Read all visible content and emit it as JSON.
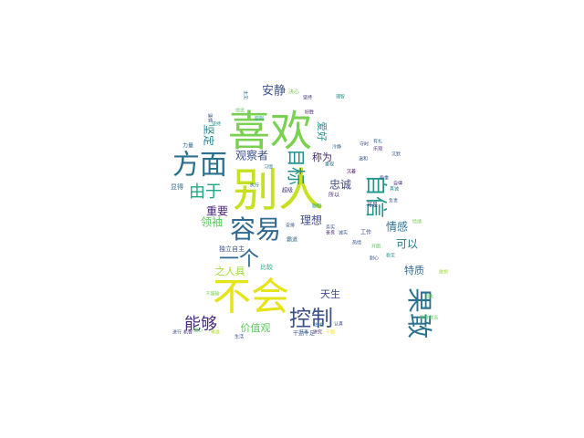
{
  "colors": {
    "background": "#ffffff",
    "palette": [
      "#440154",
      "#3b528b",
      "#21918c",
      "#5ec962",
      "#fde725"
    ]
  },
  "words": [
    {
      "text": "别人",
      "color": "#c7e020"
    },
    {
      "text": "喜欢",
      "color": "#7ad151"
    },
    {
      "text": "不会",
      "color": "#e5e419"
    },
    {
      "text": "方面",
      "color": "#2c728e"
    },
    {
      "text": "果敢",
      "color": "#2c728e"
    },
    {
      "text": "容易",
      "color": "#31688e"
    },
    {
      "text": "控制",
      "color": "#3b528b"
    },
    {
      "text": "自信",
      "color": "#1f988b"
    },
    {
      "text": "一个",
      "color": "#31688e"
    },
    {
      "text": "目标",
      "color": "#21918c"
    },
    {
      "text": "能够",
      "color": "#472d7b"
    },
    {
      "text": "由于",
      "color": "#22a884"
    },
    {
      "text": "安静",
      "color": "#3b528b"
    },
    {
      "text": "观察者",
      "color": "#3b528b"
    },
    {
      "text": "重要",
      "color": "#482475"
    },
    {
      "text": "理想",
      "color": "#3e4a89"
    },
    {
      "text": "领袖",
      "color": "#5ec962"
    },
    {
      "text": "情感",
      "color": "#2c728e"
    },
    {
      "text": "可以",
      "color": "#2a788e"
    },
    {
      "text": "忠诚",
      "color": "#3e4a89"
    },
    {
      "text": "称为",
      "color": "#482878"
    },
    {
      "text": "坚定",
      "color": "#26828e"
    },
    {
      "text": "爱好",
      "color": "#21918c"
    },
    {
      "text": "之人具",
      "color": "#a0da39"
    },
    {
      "text": "天生",
      "color": "#3e4a89"
    },
    {
      "text": "价值观",
      "color": "#5ec962"
    },
    {
      "text": "特质",
      "color": "#31688e"
    },
    {
      "text": "独立自主",
      "color": "#3b528b"
    },
    {
      "text": "比较",
      "color": "#22a884"
    },
    {
      "text": "显得",
      "color": "#31688e"
    },
    {
      "text": "超级",
      "color": "#472d7b"
    },
    {
      "text": "所以",
      "color": "#472d7b"
    },
    {
      "text": "可是",
      "color": "#472d7b"
    },
    {
      "text": "工作",
      "color": "#3e4a89"
    },
    {
      "text": "霸道",
      "color": "#31688e"
    },
    {
      "text": "安排",
      "color": "#3b528b"
    },
    {
      "text": "习惯",
      "color": "#2c728e"
    },
    {
      "text": "执行",
      "color": "#2c728e"
    },
    {
      "text": "放松",
      "color": "#2c728e"
    },
    {
      "text": "讲究",
      "color": "#472d7b"
    },
    {
      "text": "节奏",
      "color": "#2c728e"
    },
    {
      "text": "生活",
      "color": "#3b528b"
    },
    {
      "text": "决心",
      "color": "#7ad151"
    },
    {
      "text": "主见",
      "color": "#2c728e"
    },
    {
      "text": "干脆",
      "color": "#fde725"
    },
    {
      "text": "理智",
      "color": "#21918c"
    },
    {
      "text": "坚持",
      "color": "#472d7b"
    },
    {
      "text": "力量",
      "color": "#31688e"
    },
    {
      "text": "信念",
      "color": "#5ec962"
    },
    {
      "text": "原则",
      "color": "#21918c"
    },
    {
      "text": "谨慎",
      "color": "#3b528b"
    },
    {
      "text": "聪明",
      "color": "#22a884"
    },
    {
      "text": "冷静",
      "color": "#31688e"
    },
    {
      "text": "温和",
      "color": "#3b528b"
    },
    {
      "text": "沉着",
      "color": "#440154"
    },
    {
      "text": "细心",
      "color": "#5ec962"
    },
    {
      "text": "稳重",
      "color": "#3b528b"
    },
    {
      "text": "进行",
      "color": "#3b528b"
    },
    {
      "text": "机智",
      "color": "#472d7b"
    },
    {
      "text": "勇敢",
      "color": "#b5de2b"
    },
    {
      "text": "诚实",
      "color": "#3b528b"
    },
    {
      "text": "善良",
      "color": "#472d7b"
    },
    {
      "text": "热情",
      "color": "#3b528b"
    },
    {
      "text": "开朗",
      "color": "#5ec962"
    },
    {
      "text": "耐心",
      "color": "#3b528b"
    },
    {
      "text": "真诚",
      "color": "#26828e"
    },
    {
      "text": "负责",
      "color": "#3b528b"
    },
    {
      "text": "自律",
      "color": "#472d7b"
    },
    {
      "text": "守时",
      "color": "#3e4a89"
    },
    {
      "text": "有礼",
      "color": "#31688e"
    },
    {
      "text": "乐观",
      "color": "#482878"
    },
    {
      "text": "干劲十足",
      "color": "#3b528b"
    },
    {
      "text": "坚持",
      "color": "#21918c"
    },
    {
      "text": "固执",
      "color": "#5ec962"
    },
    {
      "text": "认真",
      "color": "#3b528b"
    },
    {
      "text": "不服输",
      "color": "#7ad151"
    },
    {
      "text": "敢作敢当",
      "color": "#5ec962"
    },
    {
      "text": "敢想",
      "color": "#a0da39"
    },
    {
      "text": "情绪",
      "color": "#7ad151"
    },
    {
      "text": "沉默",
      "color": "#3b528b"
    },
    {
      "text": "好胜",
      "color": "#482475"
    },
    {
      "text": "务实",
      "color": "#3b528b"
    },
    {
      "text": "重视",
      "color": "#2c728e"
    },
    {
      "text": "稳定",
      "color": "#21918c"
    }
  ]
}
